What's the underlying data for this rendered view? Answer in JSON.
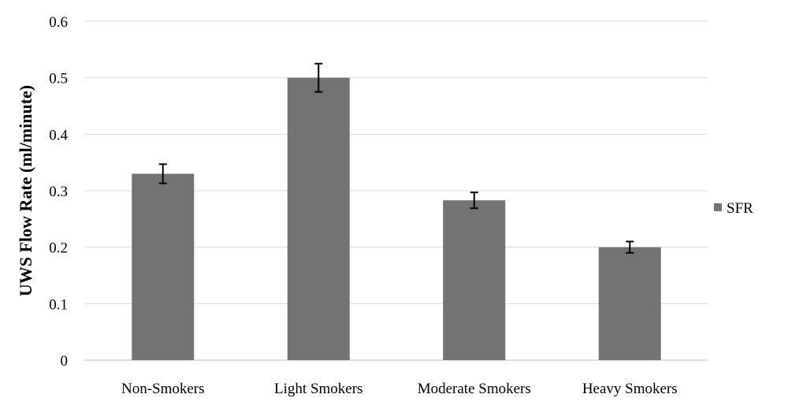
{
  "chart_data": {
    "type": "bar",
    "categories": [
      "Non-Smokers",
      "Light Smokers",
      "Moderate Smokers",
      "Heavy Smokers"
    ],
    "series": [
      {
        "name": "SFR",
        "values": [
          0.33,
          0.5,
          0.283,
          0.2
        ],
        "error": [
          0.017,
          0.025,
          0.014,
          0.01
        ]
      }
    ],
    "yticks": [
      "0",
      "0.1",
      "0.2",
      "0.3",
      "0.4",
      "0.5",
      "0.6"
    ],
    "title": "",
    "xlabel": "",
    "ylabel": "UWS Flow Rate (ml/minute)",
    "ylim": [
      0,
      0.6
    ],
    "grid": true,
    "legend_position": "right",
    "colors": {
      "bar": "#737373",
      "grid": "#d9d9d9",
      "axis": "#bfbfbf",
      "error": "#000000"
    }
  }
}
